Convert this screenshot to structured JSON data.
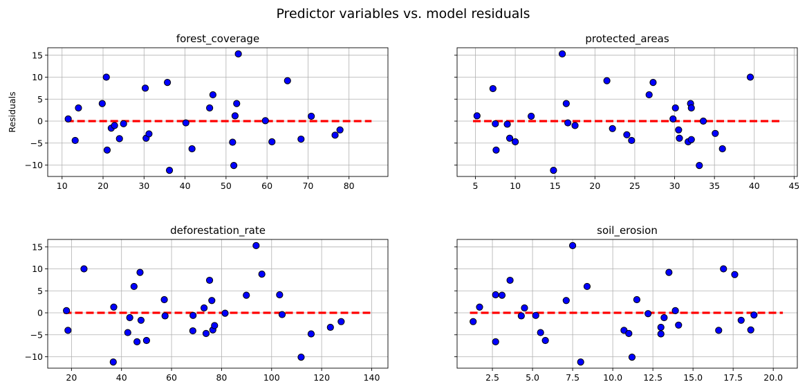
{
  "title": "Predictor variables vs. model residuals",
  "colors": {
    "points": "#0000ff",
    "point_edge": "#000000",
    "zero_line": "#ff0000",
    "grid": "#b0b0b0"
  },
  "chart_data": [
    {
      "type": "scatter",
      "title": "forest_coverage",
      "xlabel": "",
      "ylabel": "Residuals",
      "xlim": [
        6.5,
        89.5
      ],
      "ylim": [
        -12.6,
        16.7
      ],
      "xticks": [
        10,
        20,
        30,
        40,
        50,
        60,
        70,
        80
      ],
      "yticks": [
        -10,
        -5,
        0,
        5,
        10,
        15
      ],
      "show_ytick_labels": true,
      "grid": true,
      "zero_line": {
        "x": [
          11,
          85.5
        ],
        "y": 0
      },
      "points": [
        [
          11.5,
          0.5
        ],
        [
          13.2,
          -4.4
        ],
        [
          14.0,
          3.0
        ],
        [
          19.8,
          4.0
        ],
        [
          20.8,
          10.0
        ],
        [
          21.0,
          -6.6
        ],
        [
          22.0,
          -1.6
        ],
        [
          22.8,
          -1.0
        ],
        [
          24.0,
          -4.0
        ],
        [
          25.0,
          -0.6
        ],
        [
          30.3,
          7.5
        ],
        [
          30.5,
          -3.9
        ],
        [
          31.2,
          -2.9
        ],
        [
          35.7,
          8.8
        ],
        [
          36.2,
          -11.2
        ],
        [
          40.2,
          -0.4
        ],
        [
          41.7,
          -6.3
        ],
        [
          46.0,
          3.0
        ],
        [
          46.8,
          6.0
        ],
        [
          51.6,
          -4.8
        ],
        [
          51.9,
          -10.1
        ],
        [
          52.2,
          1.2
        ],
        [
          52.6,
          4.0
        ],
        [
          53.0,
          15.3
        ],
        [
          59.6,
          0.1
        ],
        [
          61.2,
          -4.7
        ],
        [
          65.0,
          9.2
        ],
        [
          68.3,
          -4.1
        ],
        [
          70.8,
          1.1
        ],
        [
          76.6,
          -3.2
        ],
        [
          77.8,
          -2.0
        ]
      ]
    },
    {
      "type": "scatter",
      "title": "protected_areas",
      "xlabel": "",
      "ylabel": "",
      "xlim": [
        2.7,
        45.4
      ],
      "ylim": [
        -12.6,
        16.7
      ],
      "xticks": [
        5,
        10,
        15,
        20,
        25,
        30,
        35,
        40,
        45
      ],
      "yticks": [
        -10,
        -5,
        0,
        5,
        10,
        15
      ],
      "show_ytick_labels": false,
      "grid": true,
      "zero_line": {
        "x": [
          4.7,
          43.4
        ],
        "y": 0
      },
      "points": [
        [
          5.2,
          1.2
        ],
        [
          7.2,
          7.4
        ],
        [
          7.5,
          -0.6
        ],
        [
          7.6,
          -6.6
        ],
        [
          9.0,
          -0.7
        ],
        [
          9.3,
          -3.9
        ],
        [
          10.0,
          -4.7
        ],
        [
          12.0,
          1.1
        ],
        [
          14.8,
          -11.2
        ],
        [
          15.9,
          15.3
        ],
        [
          16.4,
          4.0
        ],
        [
          16.6,
          -0.4
        ],
        [
          17.5,
          -1.0
        ],
        [
          21.5,
          9.2
        ],
        [
          22.2,
          -1.7
        ],
        [
          24.0,
          -3.1
        ],
        [
          24.6,
          -4.4
        ],
        [
          26.8,
          6.0
        ],
        [
          27.3,
          8.8
        ],
        [
          29.8,
          0.5
        ],
        [
          30.1,
          3.0
        ],
        [
          30.5,
          -2.0
        ],
        [
          30.6,
          -3.9
        ],
        [
          31.7,
          -4.7
        ],
        [
          32.0,
          4.0
        ],
        [
          32.1,
          3.0
        ],
        [
          32.1,
          -4.2
        ],
        [
          33.1,
          -10.1
        ],
        [
          33.6,
          0.0
        ],
        [
          35.1,
          -2.8
        ],
        [
          36.0,
          -6.3
        ],
        [
          39.5,
          10.0
        ]
      ]
    },
    {
      "type": "scatter",
      "title": "deforestation_rate",
      "xlabel": "",
      "ylabel": "",
      "xlim": [
        10.5,
        146.5
      ],
      "ylim": [
        -12.6,
        16.7
      ],
      "xticks": [
        20,
        40,
        60,
        80,
        100,
        120,
        140
      ],
      "yticks": [
        -10,
        -5,
        0,
        5,
        10,
        15
      ],
      "show_ytick_labels": true,
      "grid": true,
      "zero_line": {
        "x": [
          17,
          140
        ],
        "y": 0
      },
      "points": [
        [
          18.0,
          0.5
        ],
        [
          18.6,
          -4.0
        ],
        [
          25.0,
          10.0
        ],
        [
          36.7,
          -11.2
        ],
        [
          36.9,
          1.3
        ],
        [
          42.5,
          -4.5
        ],
        [
          43.3,
          -1.1
        ],
        [
          45.0,
          6.0
        ],
        [
          46.2,
          -6.6
        ],
        [
          47.4,
          9.2
        ],
        [
          47.8,
          -1.7
        ],
        [
          50.0,
          -6.3
        ],
        [
          57.1,
          3.0
        ],
        [
          57.4,
          -0.7
        ],
        [
          68.5,
          -4.1
        ],
        [
          68.6,
          -0.6
        ],
        [
          73.0,
          1.1
        ],
        [
          73.8,
          -4.7
        ],
        [
          75.2,
          7.4
        ],
        [
          76.1,
          2.8
        ],
        [
          76.5,
          -3.9
        ],
        [
          77.2,
          -2.9
        ],
        [
          81.4,
          -0.1
        ],
        [
          89.9,
          4.0
        ],
        [
          93.8,
          15.3
        ],
        [
          96.1,
          8.8
        ],
        [
          103.2,
          4.1
        ],
        [
          104.2,
          -0.4
        ],
        [
          111.8,
          -10.1
        ],
        [
          115.8,
          -4.8
        ],
        [
          123.5,
          -3.3
        ],
        [
          127.8,
          -2.0
        ]
      ]
    },
    {
      "type": "scatter",
      "title": "soil_erosion",
      "xlabel": "",
      "ylabel": "",
      "xlim": [
        0.3,
        21.5
      ],
      "ylim": [
        -12.6,
        16.7
      ],
      "xticks": [
        2.5,
        5.0,
        7.5,
        10.0,
        12.5,
        15.0,
        17.5,
        20.0
      ],
      "xtick_labels": [
        "2.5",
        "5.0",
        "7.5",
        "10.0",
        "12.5",
        "15.0",
        "17.5",
        "20.0"
      ],
      "yticks": [
        -10,
        -5,
        0,
        5,
        10,
        15
      ],
      "show_ytick_labels": false,
      "grid": true,
      "zero_line": {
        "x": [
          1.1,
          20.6
        ],
        "y": 0
      },
      "points": [
        [
          1.3,
          -2.0
        ],
        [
          1.7,
          1.3
        ],
        [
          2.7,
          4.1
        ],
        [
          2.7,
          -6.6
        ],
        [
          3.1,
          4.0
        ],
        [
          3.6,
          7.4
        ],
        [
          4.3,
          -0.7
        ],
        [
          4.5,
          1.1
        ],
        [
          5.2,
          -0.6
        ],
        [
          5.5,
          -4.5
        ],
        [
          5.8,
          -6.3
        ],
        [
          7.1,
          2.8
        ],
        [
          7.5,
          15.3
        ],
        [
          8.0,
          -11.2
        ],
        [
          8.4,
          6.0
        ],
        [
          10.7,
          -4.0
        ],
        [
          11.0,
          -4.7
        ],
        [
          11.2,
          -10.1
        ],
        [
          11.5,
          3.0
        ],
        [
          12.2,
          -0.2
        ],
        [
          13.0,
          -3.3
        ],
        [
          13.0,
          -4.8
        ],
        [
          13.2,
          -1.1
        ],
        [
          13.5,
          9.2
        ],
        [
          13.9,
          0.5
        ],
        [
          14.1,
          -2.8
        ],
        [
          16.6,
          -4.0
        ],
        [
          16.9,
          10.0
        ],
        [
          17.6,
          8.7
        ],
        [
          18.0,
          -1.7
        ],
        [
          18.6,
          -3.9
        ],
        [
          18.8,
          -0.5
        ]
      ]
    }
  ]
}
